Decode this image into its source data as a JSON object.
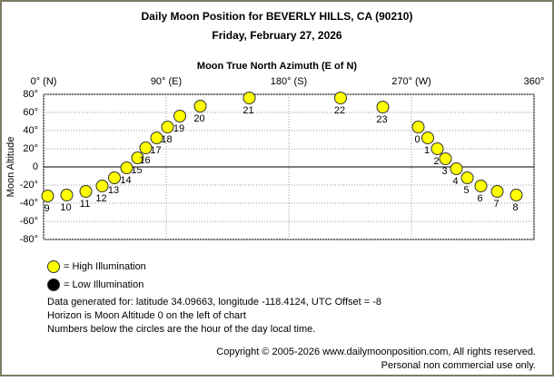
{
  "chart_data": {
    "type": "scatter",
    "title": "Daily Moon Position for BEVERLY HILLS, CA (90210)",
    "subtitle": "Friday, February 27, 2026",
    "x_label": "Moon True North Azimuth (E of N)",
    "y_label": "Moon Altitude",
    "xlim": [
      0,
      360
    ],
    "xticks": [
      {
        "value": 0,
        "label": "0° (N)"
      },
      {
        "value": 90,
        "label": "90° (E)"
      },
      {
        "value": 180,
        "label": "180° (S)"
      },
      {
        "value": 270,
        "label": "270° (W)"
      },
      {
        "value": 360,
        "label": "360°"
      }
    ],
    "ylim": [
      -80,
      80
    ],
    "yticks": [
      {
        "value": 80,
        "label": "80°"
      },
      {
        "value": 60,
        "label": "60°"
      },
      {
        "value": 40,
        "label": "40°"
      },
      {
        "value": 20,
        "label": "20°"
      },
      0,
      {
        "value": -20,
        "label": "-20°"
      },
      {
        "value": -40,
        "label": "-40°"
      },
      {
        "value": -60,
        "label": "-60°"
      },
      {
        "value": -80,
        "label": "-80°"
      }
    ],
    "grid": true,
    "series": [
      {
        "color": "#ffff00",
        "labels": [
          "0",
          "1",
          "2",
          "3",
          "4",
          "5",
          "6",
          "7",
          "8",
          "9",
          "10",
          "11",
          "12",
          "13",
          "14",
          "15",
          "16",
          "17",
          "18",
          "19",
          "20",
          "21",
          "22",
          "23"
        ],
        "x": [
          275,
          282,
          289,
          295,
          303,
          311,
          321,
          333,
          347,
          3,
          17,
          31,
          43,
          52,
          61,
          69,
          75,
          83,
          91,
          100,
          115,
          151,
          218,
          249
        ],
        "values": [
          44,
          32,
          20,
          9,
          -2,
          -12,
          -21,
          -27,
          -31,
          -32,
          -31,
          -27,
          -21,
          -12,
          -1,
          10,
          21,
          32,
          44,
          56,
          67,
          76,
          76,
          66
        ]
      }
    ],
    "legend": [
      {
        "label": "= High Illumination",
        "color": "#ffff00"
      },
      {
        "label": "= Low Illumination",
        "color": "#000000"
      }
    ],
    "notes": [
      "Data generated for: latitude 34.09663, longitude -118.4124, UTC Offset = -8",
      "Horizon is Moon Altitude 0 on the left of chart",
      "Numbers below the circles are the hour of the day local time."
    ],
    "copyright": [
      "Copyright © 2005-2026 www.dailymoonposition.com, All rights reserved.",
      "Personal non commercial use only."
    ]
  }
}
